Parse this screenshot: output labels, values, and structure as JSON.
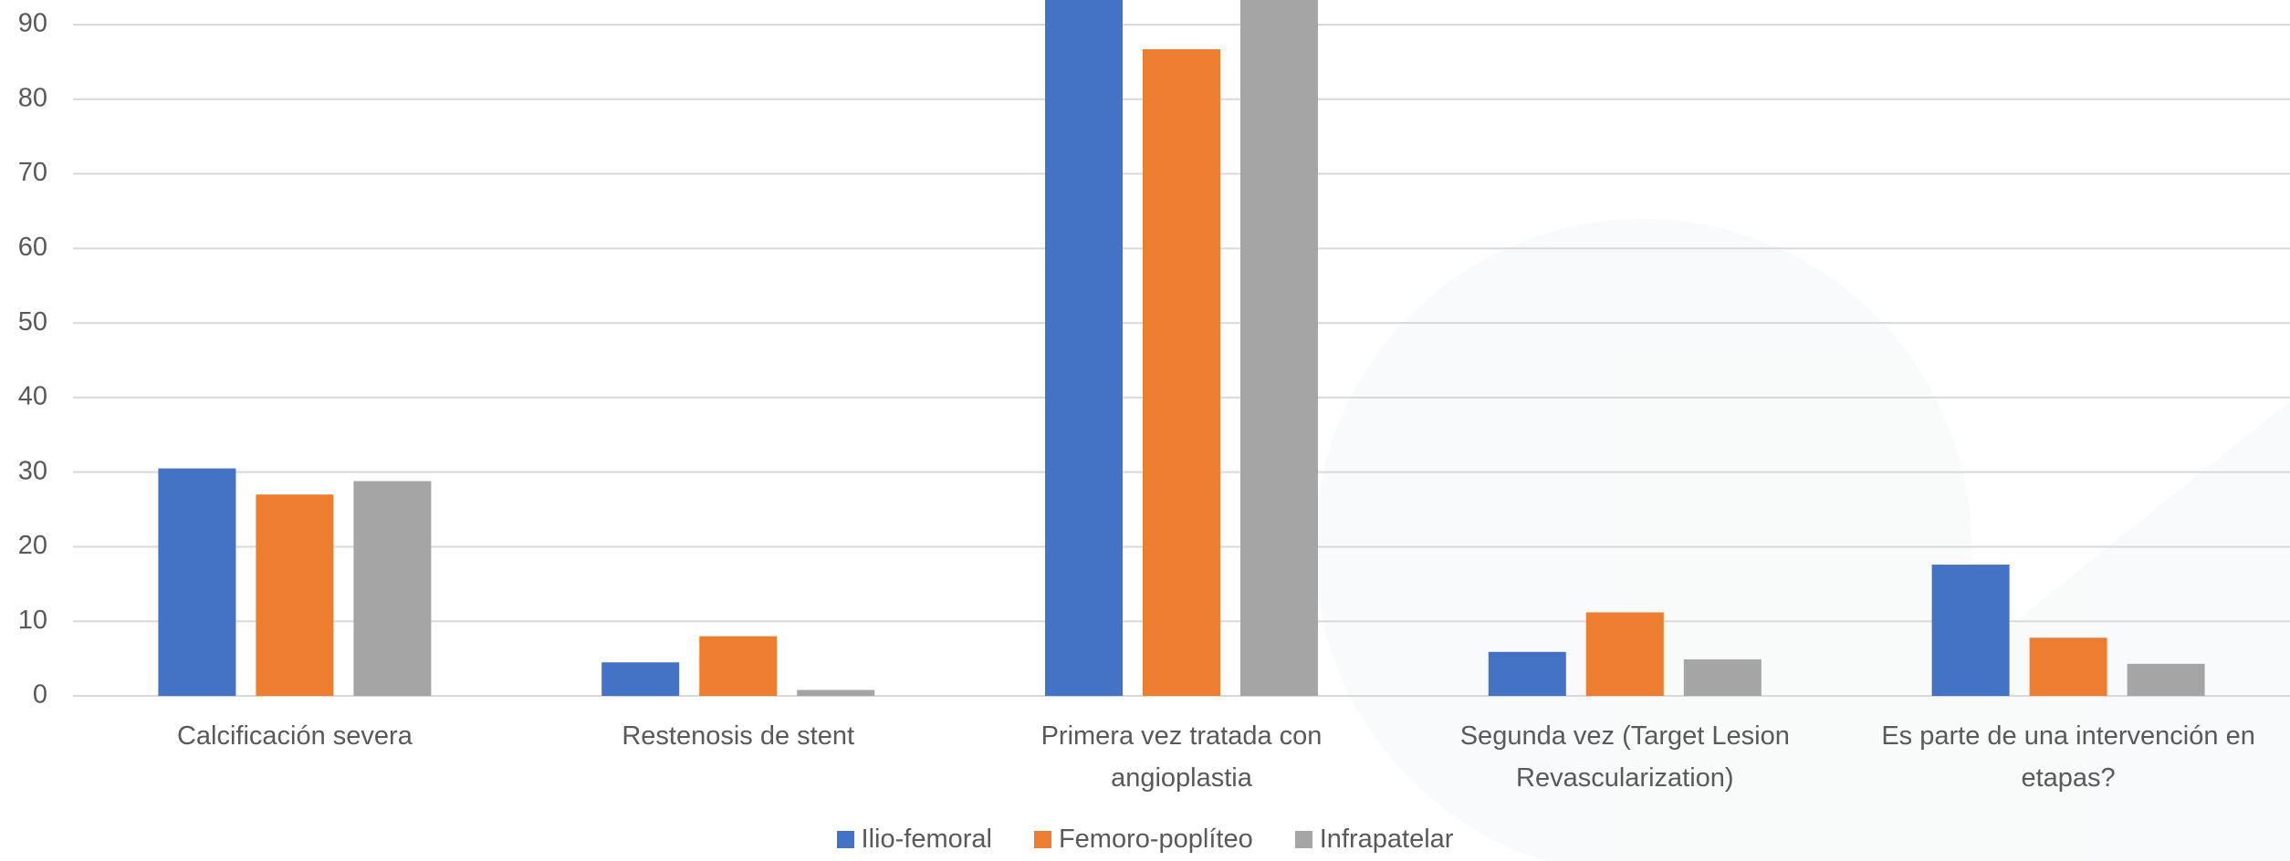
{
  "chart_data": {
    "type": "bar",
    "categories": [
      "Calcificación severa",
      "Restenosis de stent",
      "Primera vez tratada con angioplastia",
      "Segunda vez (Target Lesion Revascularization)",
      "Es parte de una intervención en etapas?"
    ],
    "series": [
      {
        "name": "Ilio-femoral",
        "color": "#4472c4",
        "values": [
          30.5,
          4.5,
          95,
          5.9,
          17.6
        ]
      },
      {
        "name": "Femoro-poplíteo",
        "color": "#ed7d31",
        "values": [
          27,
          8,
          86.7,
          11.2,
          7.8
        ]
      },
      {
        "name": "Infrapatelar",
        "color": "#a5a5a5",
        "values": [
          28.8,
          0.8,
          95,
          4.9,
          4.3
        ]
      }
    ],
    "ylim": [
      0,
      93.3
    ],
    "yticks": [
      0,
      10,
      20,
      30,
      40,
      50,
      60,
      70,
      80,
      90
    ],
    "grid": true,
    "legend": "bottom"
  }
}
